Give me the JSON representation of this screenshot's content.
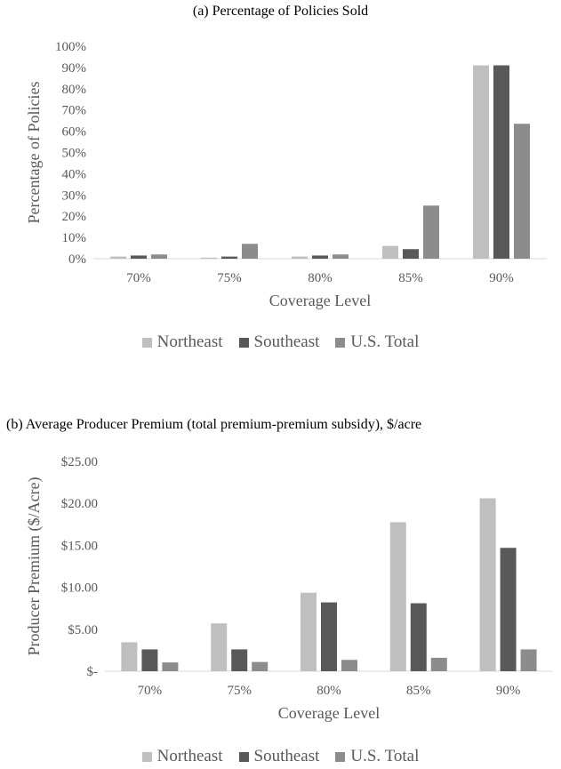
{
  "chart_data": [
    {
      "type": "bar",
      "title": "(a)  Percentage of Policies Sold",
      "xlabel": "Coverage Level",
      "ylabel": "Percentage of Policies",
      "categories": [
        "70%",
        "75%",
        "80%",
        "85%",
        "90%"
      ],
      "series": [
        {
          "name": "Northeast",
          "values": [
            1,
            0.5,
            1,
            6,
            91
          ],
          "color": "#bfbfbf"
        },
        {
          "name": "Southeast",
          "values": [
            1.5,
            1,
            1.5,
            4.5,
            91
          ],
          "color": "#595959"
        },
        {
          "name": "U.S. Total",
          "values": [
            2,
            7,
            2,
            25,
            63.5
          ],
          "color": "#8c8c8c"
        }
      ],
      "ylim": [
        0,
        100
      ],
      "yticks": [
        "0%",
        "10%",
        "20%",
        "30%",
        "40%",
        "50%",
        "60%",
        "70%",
        "80%",
        "90%",
        "100%"
      ],
      "grid": false,
      "legend": "bottom"
    },
    {
      "type": "bar",
      "title": "(b)  Average Producer Premium (total premium-premium subsidy), $/acre",
      "xlabel": "Coverage Level",
      "ylabel": "Producer Premium ($/Acre)",
      "categories": [
        "70%",
        "75%",
        "80%",
        "85%",
        "90%"
      ],
      "series": [
        {
          "name": "Northeast",
          "values": [
            3.45,
            5.7,
            9.35,
            17.75,
            20.6
          ],
          "color": "#bfbfbf"
        },
        {
          "name": "Southeast",
          "values": [
            2.6,
            2.6,
            8.2,
            8.1,
            14.7
          ],
          "color": "#595959"
        },
        {
          "name": "U.S. Total",
          "values": [
            1.05,
            1.1,
            1.35,
            1.6,
            2.6
          ],
          "color": "#8c8c8c"
        }
      ],
      "ylim": [
        0,
        25
      ],
      "yticks": [
        "$-",
        "$5.00",
        "$10.00",
        "$15.00",
        "$20.00",
        "$25.00"
      ],
      "grid": false,
      "legend": "bottom"
    }
  ]
}
